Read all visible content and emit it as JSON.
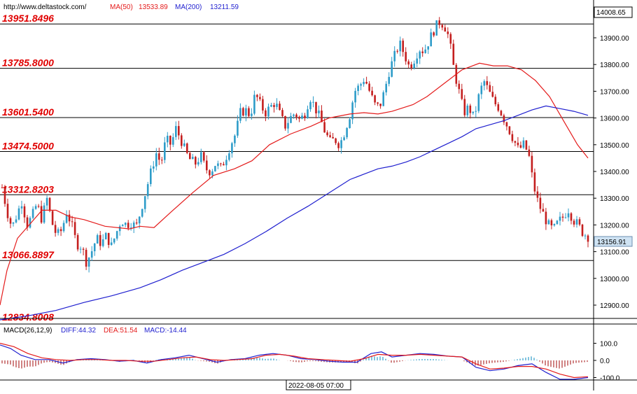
{
  "header": {
    "site": "http://www.deltastock.com/",
    "ma50_label": "MA(50)",
    "ma50_value": "13533.89",
    "ma200_label": "MA(200)",
    "ma200_value": "13211.59",
    "top_price": "14008.65"
  },
  "colors": {
    "up_candle": "#2e9cc9",
    "down_candle": "#c41e1e",
    "ma50": "#e41b1b",
    "ma200": "#1f1fcf",
    "level_text": "#e00000",
    "diff": "#1f1fcf",
    "dea": "#e41b1b",
    "hist_pos": "#2e9cc9",
    "hist_neg": "#b03030",
    "price_badge": "#cfe3f3"
  },
  "levels": [
    {
      "label": "13951.8496",
      "value": 13951.85
    },
    {
      "label": "13785.8000",
      "value": 13785.8
    },
    {
      "label": "13601.5400",
      "value": 13601.54
    },
    {
      "label": "13474.5000",
      "value": 13474.5
    },
    {
      "label": "13312.8203",
      "value": 13312.82
    },
    {
      "label": "13066.8897",
      "value": 13066.89
    },
    {
      "label": "12834.8008",
      "value": 12834.8
    }
  ],
  "price_axis": {
    "ticks": [
      "13900.00",
      "13800.00",
      "13700.00",
      "13600.00",
      "13500.00",
      "13400.00",
      "13300.00",
      "13200.00",
      "13100.00",
      "13000.00",
      "12900.00"
    ],
    "current_price": "13156.91"
  },
  "macd": {
    "title": "MACD(26,12,9)",
    "diff_text": "DIFF:44.32",
    "dea_text": "DEA:51.54",
    "macd_text": "MACD:-14.44",
    "ticks": [
      "100.0",
      "0.0",
      "-100.0"
    ]
  },
  "time_axis": {
    "label": "2022-08-05 07:00"
  },
  "chart_data": {
    "type": "candlestick",
    "ylim": [
      12830,
      14010
    ],
    "levels": [
      13951.85,
      13785.8,
      13601.54,
      13474.5,
      13312.82,
      13066.89,
      12834.8
    ],
    "close_path": [
      13340,
      13250,
      13190,
      13240,
      13290,
      13200,
      13230,
      13280,
      13220,
      13300,
      13210,
      13160,
      13180,
      13250,
      13200,
      13130,
      13120,
      13060,
      13100,
      13150,
      13130,
      13160,
      13120,
      13170,
      13220,
      13200,
      13210,
      13190,
      13260,
      13330,
      13400,
      13470,
      13430,
      13520,
      13500,
      13560,
      13520,
      13470,
      13440,
      13430,
      13460,
      13410,
      13400,
      13430,
      13410,
      13450,
      13500,
      13540,
      13620,
      13630,
      13610,
      13690,
      13650,
      13620,
      13640,
      13660,
      13610,
      13570,
      13600,
      13620,
      13590,
      13620,
      13680,
      13640,
      13600,
      13550,
      13510,
      13520,
      13500,
      13550,
      13610,
      13700,
      13720,
      13750,
      13700,
      13650,
      13640,
      13700,
      13780,
      13830,
      13880,
      13840,
      13790,
      13820,
      13860,
      13850,
      13890,
      13930,
      13960,
      13950,
      13900,
      13780,
      13700,
      13620,
      13640,
      13600,
      13680,
      13740,
      13700,
      13660,
      13640,
      13600,
      13560,
      13520,
      13480,
      13500,
      13470,
      13350,
      13280,
      13240,
      13200,
      13180,
      13210,
      13230,
      13260,
      13220,
      13200,
      13170,
      13157
    ],
    "ma50": [
      [
        0,
        12900
      ],
      [
        10,
        13030
      ],
      [
        25,
        13150
      ],
      [
        45,
        13210
      ],
      [
        60,
        13255
      ],
      [
        80,
        13255
      ],
      [
        100,
        13230
      ],
      [
        120,
        13220
      ],
      [
        150,
        13195
      ],
      [
        185,
        13185
      ],
      [
        200,
        13195
      ],
      [
        220,
        13190
      ],
      [
        245,
        13250
      ],
      [
        275,
        13320
      ],
      [
        305,
        13385
      ],
      [
        335,
        13410
      ],
      [
        360,
        13440
      ],
      [
        385,
        13500
      ],
      [
        415,
        13540
      ],
      [
        445,
        13570
      ],
      [
        470,
        13600
      ],
      [
        500,
        13615
      ],
      [
        520,
        13620
      ],
      [
        540,
        13615
      ],
      [
        560,
        13625
      ],
      [
        590,
        13650
      ],
      [
        610,
        13680
      ],
      [
        635,
        13730
      ],
      [
        660,
        13780
      ],
      [
        685,
        13805
      ],
      [
        705,
        13795
      ],
      [
        725,
        13795
      ],
      [
        745,
        13780
      ],
      [
        765,
        13740
      ],
      [
        785,
        13680
      ],
      [
        805,
        13590
      ],
      [
        825,
        13500
      ],
      [
        840,
        13450
      ]
    ],
    "ma200": [
      [
        0,
        12845
      ],
      [
        40,
        12860
      ],
      [
        80,
        12880
      ],
      [
        120,
        12910
      ],
      [
        160,
        12935
      ],
      [
        200,
        12965
      ],
      [
        230,
        12995
      ],
      [
        260,
        13030
      ],
      [
        290,
        13060
      ],
      [
        320,
        13090
      ],
      [
        350,
        13130
      ],
      [
        380,
        13175
      ],
      [
        410,
        13225
      ],
      [
        440,
        13270
      ],
      [
        470,
        13320
      ],
      [
        500,
        13370
      ],
      [
        520,
        13390
      ],
      [
        540,
        13410
      ],
      [
        560,
        13420
      ],
      [
        580,
        13435
      ],
      [
        600,
        13455
      ],
      [
        620,
        13480
      ],
      [
        640,
        13505
      ],
      [
        660,
        13530
      ],
      [
        680,
        13560
      ],
      [
        700,
        13575
      ],
      [
        720,
        13590
      ],
      [
        740,
        13610
      ],
      [
        760,
        13630
      ],
      [
        780,
        13645
      ],
      [
        800,
        13635
      ],
      [
        820,
        13625
      ],
      [
        840,
        13610
      ]
    ],
    "macd_range": [
      -130,
      140
    ],
    "macd_diff": [
      [
        0,
        90
      ],
      [
        15,
        70
      ],
      [
        30,
        30
      ],
      [
        50,
        5
      ],
      [
        70,
        5
      ],
      [
        90,
        -15
      ],
      [
        110,
        5
      ],
      [
        130,
        10
      ],
      [
        150,
        5
      ],
      [
        170,
        -5
      ],
      [
        190,
        0
      ],
      [
        210,
        -15
      ],
      [
        230,
        5
      ],
      [
        250,
        15
      ],
      [
        270,
        30
      ],
      [
        290,
        10
      ],
      [
        310,
        -10
      ],
      [
        330,
        5
      ],
      [
        350,
        10
      ],
      [
        370,
        30
      ],
      [
        390,
        40
      ],
      [
        410,
        30
      ],
      [
        430,
        10
      ],
      [
        450,
        5
      ],
      [
        470,
        -5
      ],
      [
        490,
        -10
      ],
      [
        510,
        -10
      ],
      [
        530,
        40
      ],
      [
        545,
        50
      ],
      [
        560,
        20
      ],
      [
        580,
        30
      ],
      [
        600,
        40
      ],
      [
        620,
        35
      ],
      [
        640,
        25
      ],
      [
        660,
        20
      ],
      [
        680,
        -40
      ],
      [
        700,
        -60
      ],
      [
        720,
        -50
      ],
      [
        740,
        -30
      ],
      [
        760,
        -20
      ],
      [
        780,
        -70
      ],
      [
        800,
        -110
      ],
      [
        820,
        -110
      ],
      [
        840,
        -100
      ]
    ],
    "macd_dea": [
      [
        0,
        100
      ],
      [
        20,
        80
      ],
      [
        40,
        40
      ],
      [
        60,
        15
      ],
      [
        80,
        5
      ],
      [
        100,
        0
      ],
      [
        120,
        5
      ],
      [
        140,
        5
      ],
      [
        160,
        0
      ],
      [
        180,
        0
      ],
      [
        200,
        -5
      ],
      [
        220,
        -5
      ],
      [
        240,
        5
      ],
      [
        260,
        15
      ],
      [
        280,
        20
      ],
      [
        300,
        5
      ],
      [
        320,
        0
      ],
      [
        340,
        5
      ],
      [
        360,
        10
      ],
      [
        380,
        30
      ],
      [
        400,
        35
      ],
      [
        420,
        25
      ],
      [
        440,
        10
      ],
      [
        460,
        5
      ],
      [
        480,
        0
      ],
      [
        500,
        -5
      ],
      [
        520,
        10
      ],
      [
        540,
        35
      ],
      [
        560,
        30
      ],
      [
        580,
        30
      ],
      [
        600,
        35
      ],
      [
        620,
        30
      ],
      [
        640,
        25
      ],
      [
        660,
        20
      ],
      [
        680,
        -20
      ],
      [
        700,
        -50
      ],
      [
        720,
        -45
      ],
      [
        740,
        -35
      ],
      [
        760,
        -35
      ],
      [
        780,
        -50
      ],
      [
        800,
        -80
      ],
      [
        820,
        -100
      ],
      [
        840,
        -95
      ]
    ]
  }
}
